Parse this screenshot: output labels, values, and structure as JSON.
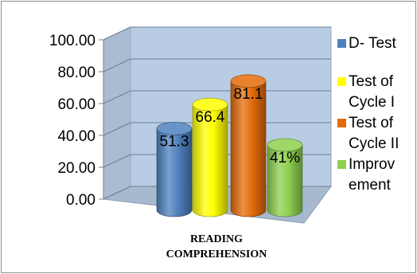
{
  "chart_data": {
    "type": "bar",
    "style": "3d-cylinder",
    "categories": [
      "READING COMPREHENSION"
    ],
    "category_label_lines": [
      "READING",
      "COMPREHENSION"
    ],
    "series": [
      {
        "name": "D- Test",
        "values": [
          51.3
        ],
        "label": "51.3",
        "color": "#4f81bd"
      },
      {
        "name": "Test of Cycle I",
        "values": [
          66.4
        ],
        "label": "66.4",
        "color": "#ffff00"
      },
      {
        "name": "Test of Cycle II",
        "values": [
          81.1
        ],
        "label": "81.1",
        "color": "#e36c0a"
      },
      {
        "name": "Improvement",
        "values": [
          41
        ],
        "label": "41%",
        "color": "#8ed04f"
      }
    ],
    "legend_lines": [
      [
        "D- Test"
      ],
      [
        "Test of",
        "Cycle I"
      ],
      [
        "Test of",
        "Cycle II"
      ],
      [
        "Improv",
        "ement"
      ]
    ],
    "y_ticks": [
      "100.00",
      "80.00",
      "60.00",
      "40.00",
      "20.00",
      "0.00"
    ],
    "ylim": [
      0,
      100
    ],
    "grid": true,
    "legend_position": "right",
    "wall_color": "#b8cce4",
    "floor_color": "#a6b9cf"
  }
}
